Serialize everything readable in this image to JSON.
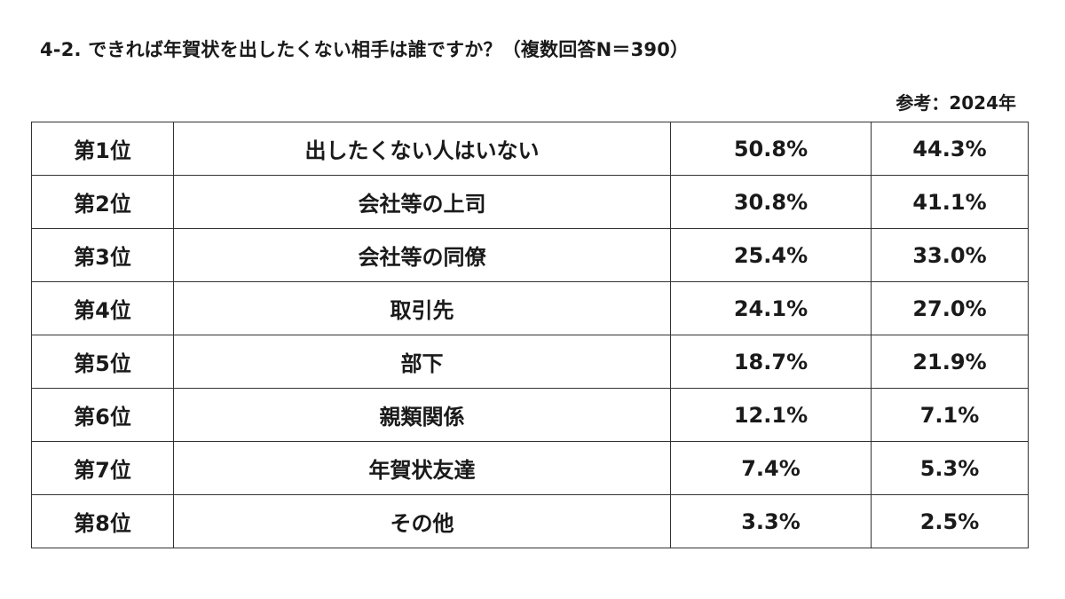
{
  "chart_data": {
    "type": "table",
    "title": "4-2. できれば年賀状を出したくない相手は誰ですか？（複数回答N＝390）",
    "reference_label": "参考：2024年",
    "rows": [
      {
        "rank": "第1位",
        "item": "出したくない人はいない",
        "value": "50.8%",
        "value_2024": "44.3%"
      },
      {
        "rank": "第2位",
        "item": "会社等の上司",
        "value": "30.8%",
        "value_2024": "41.1%"
      },
      {
        "rank": "第3位",
        "item": "会社等の同僚",
        "value": "25.4%",
        "value_2024": "33.0%"
      },
      {
        "rank": "第4位",
        "item": "取引先",
        "value": "24.1%",
        "value_2024": "27.0%"
      },
      {
        "rank": "第5位",
        "item": "部下",
        "value": "18.7%",
        "value_2024": "21.9%"
      },
      {
        "rank": "第6位",
        "item": "親類関係",
        "value": "12.1%",
        "value_2024": "7.1%"
      },
      {
        "rank": "第7位",
        "item": "年賀状友達",
        "value": "7.4%",
        "value_2024": "5.3%"
      },
      {
        "rank": "第8位",
        "item": "その他",
        "value": "3.3%",
        "value_2024": "2.5%"
      }
    ]
  }
}
